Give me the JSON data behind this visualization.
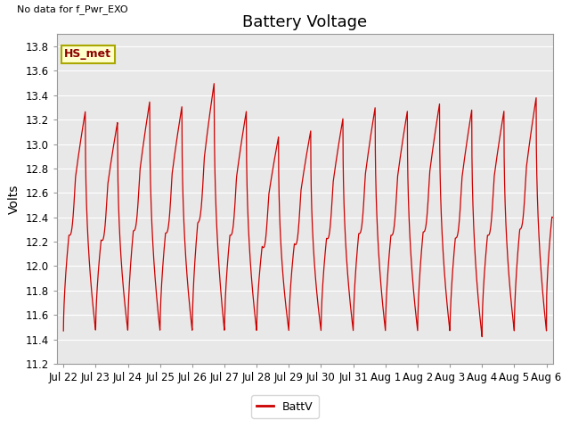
{
  "title": "Battery Voltage",
  "top_left_text": "No data for f_Pwr_EXO",
  "ylabel": "Volts",
  "legend_label": "BattV",
  "line_color": "#cc0000",
  "ylim": [
    11.2,
    13.9
  ],
  "yticks": [
    11.2,
    11.4,
    11.6,
    11.8,
    12.0,
    12.2,
    12.4,
    12.6,
    12.8,
    13.0,
    13.2,
    13.4,
    13.6,
    13.8
  ],
  "xtick_labels": [
    "Jul 22",
    "Jul 23",
    "Jul 24",
    "Jul 25",
    "Jul 26",
    "Jul 27",
    "Jul 28",
    "Jul 29",
    "Jul 30",
    "Jul 31",
    "Aug 1",
    "Aug 2",
    "Aug 3",
    "Aug 4",
    "Aug 5",
    "Aug 6"
  ],
  "annotation_box_label": "HS_met",
  "annotation_box_facecolor": "#ffffcc",
  "annotation_box_edgecolor": "#aaa800",
  "background_color": "#ffffff",
  "plot_bg_color": "#e8e8e8",
  "grid_color": "#ffffff",
  "title_fontsize": 13,
  "axis_label_fontsize": 10,
  "tick_fontsize": 8.5
}
